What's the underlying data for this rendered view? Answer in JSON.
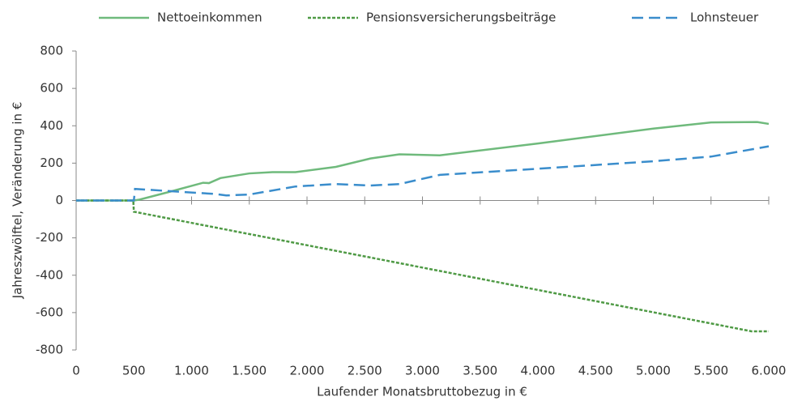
{
  "chart_data": {
    "type": "line",
    "xlabel": "Laufender Monatsbruttobezug in €",
    "ylabel": "Jahreszwölftel, Veränderung in €",
    "xlim": [
      0,
      6000
    ],
    "xticks": [
      0,
      500,
      {
        "value": 1000,
        "label": "1.000"
      },
      {
        "value": 1500,
        "label": "1.500"
      },
      {
        "value": 2000,
        "label": "2.000"
      },
      {
        "value": 2500,
        "label": "2.500"
      },
      {
        "value": 3000,
        "label": "3.000"
      },
      {
        "value": 3500,
        "label": "3.500"
      },
      {
        "value": 4000,
        "label": "4.000"
      },
      {
        "value": 4500,
        "label": "4.500"
      },
      {
        "value": 5000,
        "label": "5.000"
      },
      {
        "value": 5500,
        "label": "5.500"
      },
      {
        "value": 6000,
        "label": "6.000"
      }
    ],
    "ylim": [
      -800,
      800
    ],
    "yticks": [
      -800,
      -600,
      -400,
      -200,
      0,
      200,
      400,
      600,
      800
    ],
    "legend": "top",
    "series": [
      {
        "name": "Nettoeinkommen",
        "color": "#6fba7c",
        "style": "solid",
        "x": [
          0,
          500,
          550,
          800,
          1100,
          1150,
          1250,
          1500,
          1700,
          1900,
          2250,
          2550,
          2800,
          3150,
          4000,
          5000,
          5500,
          5900,
          6000
        ],
        "values": [
          0,
          0,
          5,
          45,
          95,
          93,
          120,
          145,
          152,
          152,
          180,
          225,
          247,
          242,
          305,
          385,
          418,
          420,
          410
        ]
      },
      {
        "name": "Pensionsversicherungsbeiträge",
        "color": "#4f9a45",
        "style": "dotted",
        "x": [
          0,
          495,
          500,
          5850,
          6000
        ],
        "values": [
          0,
          0,
          -60,
          -700,
          -700
        ]
      },
      {
        "name": "Lohnsteuer",
        "color": "#3a8dcc",
        "style": "dashed",
        "x": [
          0,
          500,
          510,
          1200,
          1300,
          1500,
          1900,
          2250,
          2550,
          2800,
          3150,
          4000,
          5000,
          5500,
          6000
        ],
        "values": [
          0,
          0,
          62,
          35,
          27,
          32,
          75,
          88,
          80,
          88,
          137,
          170,
          210,
          235,
          290
        ]
      }
    ]
  }
}
